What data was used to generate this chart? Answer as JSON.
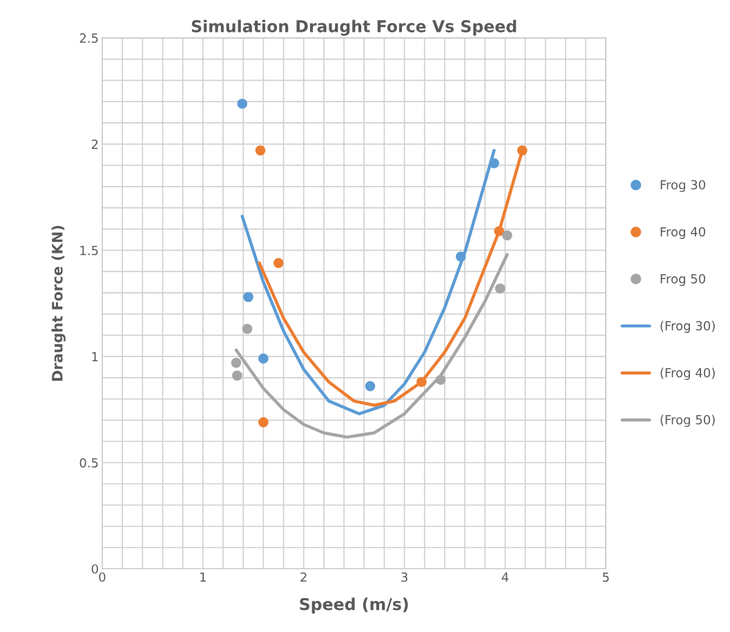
{
  "chart_data": {
    "type": "scatter",
    "title": "Simulation Draught Force Vs Speed",
    "xlabel": "Speed (m/s)",
    "ylabel": "Draught Force (KN)",
    "xlim": [
      0,
      5
    ],
    "xticks": [
      0,
      1,
      2,
      3,
      4,
      5
    ],
    "ylim": [
      0,
      2.5
    ],
    "yticks": [
      0,
      0.5,
      1,
      1.5,
      2,
      2.5
    ],
    "grid": true,
    "legend": "right",
    "series": [
      {
        "name": "Frog 30",
        "marker": "circle",
        "color": "#5b9bd5",
        "x": [
          1.39,
          1.45,
          1.6,
          2.66,
          3.56,
          3.89
        ],
        "values": [
          2.19,
          1.28,
          0.99,
          0.86,
          1.47,
          1.91
        ]
      },
      {
        "name": "Frog 40",
        "marker": "circle",
        "color": "#ed7d31",
        "x": [
          1.57,
          1.75,
          1.6,
          3.17,
          3.94,
          4.17
        ],
        "values": [
          1.97,
          1.44,
          0.69,
          0.88,
          1.59,
          1.97
        ]
      },
      {
        "name": "Frog 50",
        "marker": "circle",
        "color": "#a5a5a5",
        "x": [
          1.44,
          1.33,
          1.34,
          3.36,
          4.02,
          3.95
        ],
        "values": [
          1.13,
          0.97,
          0.91,
          0.89,
          1.57,
          1.32
        ]
      },
      {
        "name": "(Frog 30)",
        "type": "line",
        "color": "#5b9bd5",
        "x": [
          1.39,
          1.6,
          1.8,
          2.0,
          2.25,
          2.55,
          2.8,
          3.0,
          3.2,
          3.4,
          3.6,
          3.89
        ],
        "values": [
          1.66,
          1.35,
          1.12,
          0.94,
          0.79,
          0.73,
          0.77,
          0.87,
          1.02,
          1.23,
          1.49,
          1.97
        ]
      },
      {
        "name": "(Frog 40)",
        "type": "line",
        "color": "#ed7d31",
        "x": [
          1.56,
          1.8,
          2.0,
          2.25,
          2.5,
          2.7,
          2.9,
          3.17,
          3.4,
          3.6,
          3.94,
          4.17
        ],
        "values": [
          1.44,
          1.18,
          1.02,
          0.88,
          0.79,
          0.77,
          0.79,
          0.88,
          1.02,
          1.18,
          1.59,
          1.97
        ]
      },
      {
        "name": "(Frog 50)",
        "type": "line",
        "color": "#a5a5a5",
        "x": [
          1.33,
          1.6,
          1.8,
          2.0,
          2.2,
          2.43,
          2.7,
          3.0,
          3.36,
          3.6,
          3.8,
          4.02
        ],
        "values": [
          1.03,
          0.85,
          0.75,
          0.68,
          0.64,
          0.62,
          0.64,
          0.73,
          0.91,
          1.09,
          1.26,
          1.48
        ]
      }
    ]
  }
}
